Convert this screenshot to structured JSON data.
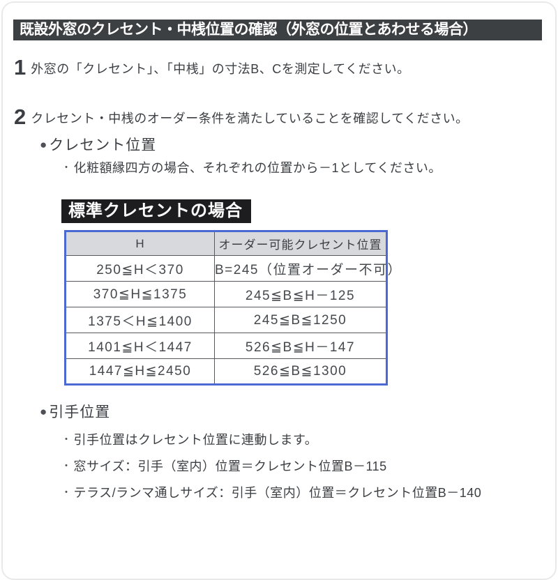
{
  "banner": "既設外窓のクレセント・中桟位置の確認（外窓の位置とあわせる場合）",
  "steps": [
    {
      "num": "1",
      "text": "外窓の「クレセント」、「中桟」の寸法B、Cを測定してください。"
    },
    {
      "num": "2",
      "text": "クレセント・中桟のオーダー条件を満たしていることを確認してください。"
    }
  ],
  "crescent": {
    "bullet": "●",
    "heading": "クレセント位置",
    "note_bullet": "・",
    "note": "化粧額縁四方の場合、それぞれの位置から－1としてください。",
    "label": "標準クレセントの場合",
    "table": {
      "headers": [
        "H",
        "オーダー可能クレセント位置"
      ],
      "rows": [
        [
          "250≦H＜370",
          "B=245（位置オーダー不可）"
        ],
        [
          "370≦H≦1375",
          "245≦B≦H－125"
        ],
        [
          "1375＜H≦1400",
          "245≦B≦1250"
        ],
        [
          "1401≦H＜1447",
          "526≦B≦H－147"
        ],
        [
          "1447≦H≦2450",
          "526≦B≦1300"
        ]
      ]
    }
  },
  "handle": {
    "bullet": "●",
    "heading": "引手位置",
    "notes": [
      {
        "bullet": "・",
        "text": "引手位置はクレセント位置に連動します。"
      },
      {
        "bullet": "・",
        "text": "窓サイズ：引手（室内）位置＝クレセント位置B－115"
      },
      {
        "bullet": "・",
        "text": "テラス/ランマ通しサイズ：引手（室内）位置＝クレセント位置B－140"
      }
    ]
  },
  "colors": {
    "banner_bg": "#3d4043",
    "label_bg": "#1d1d1f",
    "table_border": "#4a69d2",
    "table_header_bg": "#d8d9dd",
    "text": "#3b3e42"
  }
}
